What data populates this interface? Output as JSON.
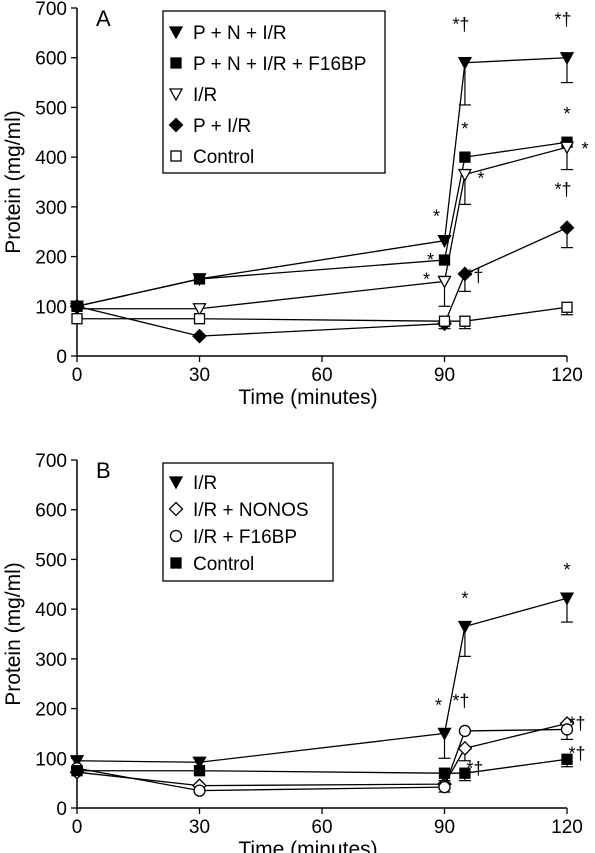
{
  "chart_data": [
    {
      "type": "line",
      "panel_label": "A",
      "xlabel": "Time (minutes)",
      "ylabel": "Protein (mg/ml)",
      "xlim": [
        0,
        120
      ],
      "ylim": [
        0,
        700
      ],
      "xticks": [
        0,
        30,
        60,
        90,
        120
      ],
      "yticks": [
        0,
        100,
        200,
        300,
        400,
        500,
        600,
        700
      ],
      "grid": false,
      "legend_position": "top-left",
      "series": [
        {
          "name": "P + N + I/R",
          "marker": "triangle-down-filled",
          "points": [
            {
              "x": 0,
              "y": 100,
              "err": 0
            },
            {
              "x": 30,
              "y": 155,
              "err": 0
            },
            {
              "x": 90,
              "y": 232,
              "err": 0
            },
            {
              "x": 95,
              "y": 590,
              "err": 85
            },
            {
              "x": 120,
              "y": 600,
              "err": 50
            }
          ]
        },
        {
          "name": "P + N + I/R + F16BP",
          "marker": "square-filled",
          "points": [
            {
              "x": 0,
              "y": 100,
              "err": 0
            },
            {
              "x": 30,
              "y": 155,
              "err": 0
            },
            {
              "x": 90,
              "y": 193,
              "err": 0
            },
            {
              "x": 95,
              "y": 400,
              "err": 0
            },
            {
              "x": 120,
              "y": 430,
              "err": 0
            }
          ]
        },
        {
          "name": "I/R",
          "marker": "triangle-down-open",
          "points": [
            {
              "x": 0,
              "y": 95,
              "err": 0
            },
            {
              "x": 30,
              "y": 95,
              "err": 0
            },
            {
              "x": 90,
              "y": 150,
              "err": 50
            },
            {
              "x": 95,
              "y": 365,
              "err": 60
            },
            {
              "x": 120,
              "y": 420,
              "err": 45
            }
          ]
        },
        {
          "name": "P + I/R",
          "marker": "diamond-filled",
          "points": [
            {
              "x": 0,
              "y": 100,
              "err": 0
            },
            {
              "x": 30,
              "y": 40,
              "err": 0
            },
            {
              "x": 90,
              "y": 65,
              "err": 0
            },
            {
              "x": 95,
              "y": 165,
              "err": 35
            },
            {
              "x": 120,
              "y": 258,
              "err": 40
            }
          ]
        },
        {
          "name": "Control",
          "marker": "square-open",
          "points": [
            {
              "x": 0,
              "y": 75,
              "err": 0
            },
            {
              "x": 30,
              "y": 75,
              "err": 0
            },
            {
              "x": 90,
              "y": 70,
              "err": 15
            },
            {
              "x": 95,
              "y": 70,
              "err": 15
            },
            {
              "x": 120,
              "y": 98,
              "err": 15
            }
          ]
        }
      ],
      "annotations": [
        {
          "text": "*†",
          "x": 95,
          "y": 590,
          "dx": -4,
          "dy": -32
        },
        {
          "text": "*†",
          "x": 120,
          "y": 600,
          "dx": -4,
          "dy": -32
        },
        {
          "text": "*",
          "x": 95,
          "y": 400,
          "dx": 0,
          "dy": -22
        },
        {
          "text": "*",
          "x": 120,
          "y": 430,
          "dx": 0,
          "dy": -22
        },
        {
          "text": "*",
          "x": 120,
          "y": 420,
          "dx": 18,
          "dy": 8
        },
        {
          "text": "*",
          "x": 95,
          "y": 365,
          "dx": 16,
          "dy": 10
        },
        {
          "text": "*",
          "x": 90,
          "y": 232,
          "dx": -8,
          "dy": -18
        },
        {
          "text": "*",
          "x": 90,
          "y": 193,
          "dx": -14,
          "dy": 6
        },
        {
          "text": "*",
          "x": 90,
          "y": 150,
          "dx": -18,
          "dy": 4
        },
        {
          "text": "*†",
          "x": 95,
          "y": 165,
          "dx": 10,
          "dy": 8
        },
        {
          "text": "*†",
          "x": 120,
          "y": 258,
          "dx": -4,
          "dy": -32
        }
      ]
    },
    {
      "type": "line",
      "panel_label": "B",
      "xlabel": "Time (minutes)",
      "ylabel": "Protein (mg/ml)",
      "xlim": [
        0,
        120
      ],
      "ylim": [
        0,
        700
      ],
      "xticks": [
        0,
        30,
        60,
        90,
        120
      ],
      "yticks": [
        0,
        100,
        200,
        300,
        400,
        500,
        600,
        700
      ],
      "grid": false,
      "legend_position": "top-left",
      "series": [
        {
          "name": "I/R",
          "marker": "triangle-down-filled",
          "points": [
            {
              "x": 0,
              "y": 95,
              "err": 0
            },
            {
              "x": 30,
              "y": 92,
              "err": 0
            },
            {
              "x": 90,
              "y": 150,
              "err": 50
            },
            {
              "x": 95,
              "y": 365,
              "err": 60
            },
            {
              "x": 120,
              "y": 422,
              "err": 48
            }
          ]
        },
        {
          "name": "I/R + NONOS",
          "marker": "diamond-open",
          "points": [
            {
              "x": 0,
              "y": 72,
              "err": 0
            },
            {
              "x": 30,
              "y": 45,
              "err": 0
            },
            {
              "x": 90,
              "y": 48,
              "err": 10
            },
            {
              "x": 95,
              "y": 120,
              "err": 25
            },
            {
              "x": 120,
              "y": 170,
              "err": 0
            }
          ]
        },
        {
          "name": "I/R + F16BP",
          "marker": "circle-open",
          "points": [
            {
              "x": 0,
              "y": 80,
              "err": 0
            },
            {
              "x": 30,
              "y": 35,
              "err": 0
            },
            {
              "x": 90,
              "y": 42,
              "err": 10
            },
            {
              "x": 95,
              "y": 155,
              "err": 0
            },
            {
              "x": 120,
              "y": 158,
              "err": 20
            }
          ]
        },
        {
          "name": "Control",
          "marker": "square-filled",
          "points": [
            {
              "x": 0,
              "y": 75,
              "err": 0
            },
            {
              "x": 30,
              "y": 75,
              "err": 0
            },
            {
              "x": 90,
              "y": 70,
              "err": 15
            },
            {
              "x": 95,
              "y": 70,
              "err": 15
            },
            {
              "x": 120,
              "y": 98,
              "err": 15
            }
          ]
        }
      ],
      "annotations": [
        {
          "text": "*",
          "x": 90,
          "y": 150,
          "dx": -6,
          "dy": -22
        },
        {
          "text": "*",
          "x": 95,
          "y": 365,
          "dx": 0,
          "dy": -22
        },
        {
          "text": "*",
          "x": 120,
          "y": 422,
          "dx": 0,
          "dy": -22
        },
        {
          "text": "*†",
          "x": 95,
          "y": 155,
          "dx": -4,
          "dy": -24
        },
        {
          "text": "*†",
          "x": 95,
          "y": 120,
          "dx": 10,
          "dy": 26
        },
        {
          "text": "*†",
          "x": 120,
          "y": 170,
          "dx": 10,
          "dy": 6
        },
        {
          "text": "*†",
          "x": 120,
          "y": 158,
          "dx": 10,
          "dy": 30
        }
      ]
    }
  ]
}
